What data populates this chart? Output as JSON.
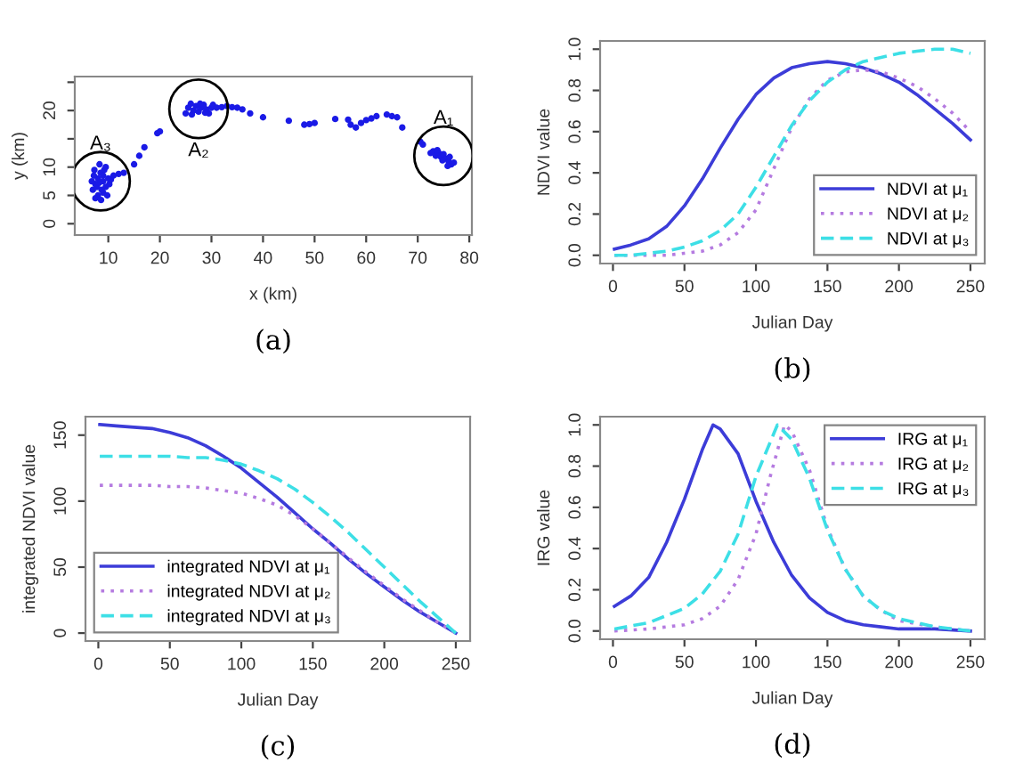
{
  "chart_data": [
    {
      "type": "scatter",
      "xlabel": "x (km)",
      "ylabel": "y (km)",
      "xlim": [
        3.5,
        80.5
      ],
      "ylim": [
        -2,
        26
      ],
      "xticks": [
        10,
        20,
        30,
        40,
        50,
        60,
        70,
        80
      ],
      "yticks": [
        0,
        5,
        10,
        {
          "value": 15,
          "label": null
        },
        20,
        {
          "value": 25,
          "label": null
        }
      ],
      "grid": false,
      "legend": false,
      "marker": "circle",
      "series": [
        {
          "color": "#1a1ae6",
          "x": [
            7,
            7.5,
            8,
            8.5,
            9,
            9.5,
            10,
            8,
            9,
            7.2,
            8.3,
            9.2,
            10.2,
            7.8,
            8.7,
            9.8,
            7.5,
            8.6,
            10.5,
            11,
            6.8,
            7.3,
            9.5,
            8.2,
            9,
            12,
            13,
            15,
            16,
            17,
            19.5,
            20,
            25,
            25.5,
            26,
            26.5,
            27,
            27.5,
            28,
            28.5,
            29,
            29.5,
            30,
            26.2,
            27.8,
            28.8,
            30.3,
            31,
            32,
            33,
            34,
            35,
            36,
            37.5,
            40,
            45,
            48,
            49,
            50,
            54,
            56.5,
            57,
            58,
            59,
            60,
            61,
            62,
            64,
            65,
            66,
            67,
            70.5,
            71,
            72.5,
            73,
            73.5,
            74,
            74.5,
            75,
            75.5,
            76,
            76.5,
            75.8,
            74.8,
            73.8,
            76.2,
            77
          ],
          "values": [
            6,
            7,
            8,
            9,
            7.5,
            6.5,
            8,
            5,
            5.5,
            8.5,
            10.5,
            9.5,
            7,
            6.5,
            6,
            5,
            4.5,
            4.2,
            7.8,
            8.5,
            7.5,
            9.5,
            10,
            7.2,
            8.5,
            8.8,
            9,
            10.5,
            12,
            13.5,
            16,
            16.3,
            19.5,
            20.5,
            21.2,
            20,
            20.8,
            19.8,
            20.5,
            21,
            20.2,
            19.5,
            20.5,
            19.3,
            21.2,
            19.6,
            21,
            20.5,
            20.6,
            20.8,
            20.6,
            20.5,
            20.2,
            19.5,
            18.8,
            18.2,
            17.5,
            17.6,
            17.8,
            18.5,
            18.4,
            17.5,
            17,
            17.8,
            18.3,
            18.6,
            19,
            19.3,
            19,
            18.8,
            17,
            14.5,
            14,
            12.5,
            12.8,
            12,
            12.6,
            11.8,
            12.3,
            11.5,
            11,
            10.5,
            10.2,
            11.2,
            13,
            11.8,
            10.8
          ]
        }
      ],
      "annotations": [
        {
          "text": "A₃",
          "x": 8.5,
          "y": 7.5
        },
        {
          "text": "A₂",
          "x": 27.5,
          "y": 20.3
        },
        {
          "text": "A₁",
          "x": 75,
          "y": 12
        },
        "(a)"
      ]
    },
    {
      "type": "line",
      "xlabel": "Julian Day",
      "ylabel": "NDVI value",
      "xlim": [
        -9,
        260
      ],
      "ylim": [
        -0.04,
        1.04
      ],
      "xticks": [
        0,
        50,
        100,
        150,
        200,
        250
      ],
      "yticks": [
        {
          "value": 0,
          "label": "0.0"
        },
        0.2,
        0.4,
        0.6,
        0.8,
        {
          "value": 1,
          "label": "1.0"
        }
      ],
      "grid": false,
      "legend": "bottom right",
      "x": [
        1,
        12.5,
        25,
        37.5,
        50,
        62.5,
        75,
        87.5,
        100,
        112.5,
        125,
        137.5,
        150,
        162.5,
        175,
        187.5,
        200,
        212.5,
        225,
        237.5,
        250
      ],
      "series": [
        {
          "name": "NDVI at μ₁",
          "color": "#3c3cd8",
          "line_style": "solid",
          "values": [
            0.03,
            0.05,
            0.08,
            0.14,
            0.24,
            0.37,
            0.52,
            0.66,
            0.78,
            0.86,
            0.91,
            0.93,
            0.94,
            0.93,
            0.91,
            0.88,
            0.84,
            0.78,
            0.71,
            0.64,
            0.56
          ]
        },
        {
          "name": "NDVI at μ₂",
          "color": "#b57be0",
          "line_style": "dotted",
          "values": [
            0,
            0,
            0,
            0,
            0.01,
            0.02,
            0.05,
            0.11,
            0.22,
            0.42,
            0.62,
            0.76,
            0.85,
            0.89,
            0.9,
            0.89,
            0.86,
            0.82,
            0.76,
            0.69,
            0.6
          ]
        },
        {
          "name": "NDVI at μ₃",
          "color": "#3ddfe6",
          "line_style": "dashed",
          "values": [
            0,
            0,
            0.01,
            0.02,
            0.04,
            0.07,
            0.12,
            0.2,
            0.33,
            0.48,
            0.63,
            0.75,
            0.84,
            0.9,
            0.94,
            0.96,
            0.98,
            0.99,
            1.0,
            1.0,
            0.98
          ]
        }
      ],
      "annotations": [
        "(b)"
      ]
    },
    {
      "type": "line",
      "xlabel": "Julian Day",
      "ylabel": "integrated NDVI value",
      "xlim": [
        -9,
        260
      ],
      "ylim": [
        -6,
        164
      ],
      "xticks": [
        0,
        50,
        100,
        150,
        200,
        250
      ],
      "yticks": [
        0,
        50,
        100,
        150
      ],
      "grid": false,
      "legend": "bottom left",
      "x": [
        1,
        12.5,
        25,
        37.5,
        50,
        62.5,
        75,
        87.5,
        100,
        112.5,
        125,
        137.5,
        150,
        162.5,
        175,
        187.5,
        200,
        212.5,
        225,
        237.5,
        250
      ],
      "series": [
        {
          "name": "integrated NDVI at μ₁",
          "color": "#3c3cd8",
          "line_style": "solid",
          "values": [
            158,
            157,
            156,
            155,
            152,
            148,
            142,
            134,
            125,
            114,
            103,
            91,
            79,
            68,
            56,
            45,
            35,
            25,
            16,
            8,
            0
          ]
        },
        {
          "name": "integrated NDVI at μ₂",
          "color": "#b57be0",
          "line_style": "dotted",
          "values": [
            112,
            112,
            112,
            112,
            111,
            111,
            110,
            108,
            106,
            102,
            97,
            89,
            79,
            68,
            57,
            46,
            36,
            26,
            17,
            8,
            0
          ]
        },
        {
          "name": "integrated NDVI at μ₃",
          "color": "#3ddfe6",
          "line_style": "dashed",
          "values": [
            134,
            134,
            134,
            134,
            134,
            133,
            133,
            131,
            128,
            123,
            117,
            109,
            99,
            88,
            76,
            63,
            50,
            37,
            24,
            12,
            0
          ]
        }
      ],
      "annotations": [
        "(c)"
      ]
    },
    {
      "type": "line",
      "xlabel": "Julian Day",
      "ylabel": "IRG value",
      "xlim": [
        -9,
        260
      ],
      "ylim": [
        -0.04,
        1.04
      ],
      "xticks": [
        0,
        50,
        100,
        150,
        200,
        250
      ],
      "yticks": [
        {
          "value": 0,
          "label": "0.0"
        },
        0.2,
        0.4,
        0.6,
        0.8,
        {
          "value": 1,
          "label": "1.0"
        }
      ],
      "grid": false,
      "legend": "top right",
      "series": [
        {
          "name": "IRG at μ₁",
          "color": "#3c3cd8",
          "line_style": "solid",
          "x": [
            1,
            12.5,
            25,
            37.5,
            50,
            62.5,
            70,
            75,
            87.5,
            100,
            112.5,
            125,
            137.5,
            150,
            162.5,
            175,
            187.5,
            200,
            225,
            250
          ],
          "values": [
            0.12,
            0.17,
            0.26,
            0.43,
            0.64,
            0.88,
            1.0,
            0.98,
            0.86,
            0.63,
            0.43,
            0.27,
            0.16,
            0.09,
            0.05,
            0.03,
            0.02,
            0.01,
            0.01,
            0
          ]
        },
        {
          "name": "IRG at μ₂",
          "color": "#b57be0",
          "line_style": "dotted",
          "x": [
            1,
            25,
            50,
            62.5,
            75,
            87.5,
            100,
            110,
            120,
            125,
            137.5,
            150,
            162.5,
            175,
            187.5,
            200,
            225,
            250
          ],
          "values": [
            0,
            0.01,
            0.03,
            0.06,
            0.12,
            0.25,
            0.47,
            0.75,
            1.0,
            0.97,
            0.78,
            0.5,
            0.3,
            0.17,
            0.1,
            0.05,
            0.02,
            0
          ]
        },
        {
          "name": "IRG at μ₃",
          "color": "#3ddfe6",
          "line_style": "dashed",
          "x": [
            1,
            25,
            50,
            62.5,
            75,
            87.5,
            100,
            115,
            125,
            137.5,
            150,
            162.5,
            175,
            187.5,
            200,
            225,
            250
          ],
          "values": [
            0.01,
            0.04,
            0.11,
            0.18,
            0.29,
            0.47,
            0.75,
            1.0,
            0.93,
            0.74,
            0.49,
            0.3,
            0.17,
            0.1,
            0.06,
            0.02,
            0
          ]
        }
      ],
      "annotations": [
        "(d)"
      ]
    }
  ]
}
